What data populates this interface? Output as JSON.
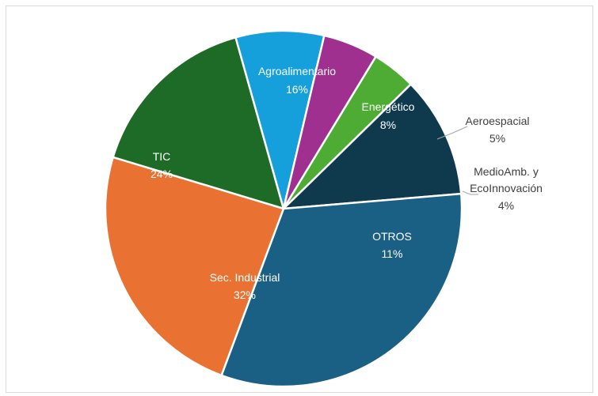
{
  "chart_data": {
    "type": "pie",
    "title": "",
    "unit": "%",
    "slices": [
      {
        "name": "Agroalimentario",
        "value": 16,
        "label": "16%",
        "color": "#1e6b27"
      },
      {
        "name": "Energético",
        "value": 8,
        "label": "8%",
        "color": "#159fdb"
      },
      {
        "name": "Aeroespacial",
        "value": 5,
        "label": "5%",
        "color": "#a0308f"
      },
      {
        "name": "MedioAmb. y EcoInnovación",
        "value": 4,
        "label": "4%",
        "color": "#4eab34"
      },
      {
        "name": "OTROS",
        "value": 11,
        "label": "11%",
        "color": "#0f3a4e"
      },
      {
        "name": "Sec. Industrial",
        "value": 32,
        "label": "32%",
        "color": "#1a5f84"
      },
      {
        "name": "TIC",
        "value": 24,
        "label": "24%",
        "color": "#e97232"
      }
    ]
  }
}
